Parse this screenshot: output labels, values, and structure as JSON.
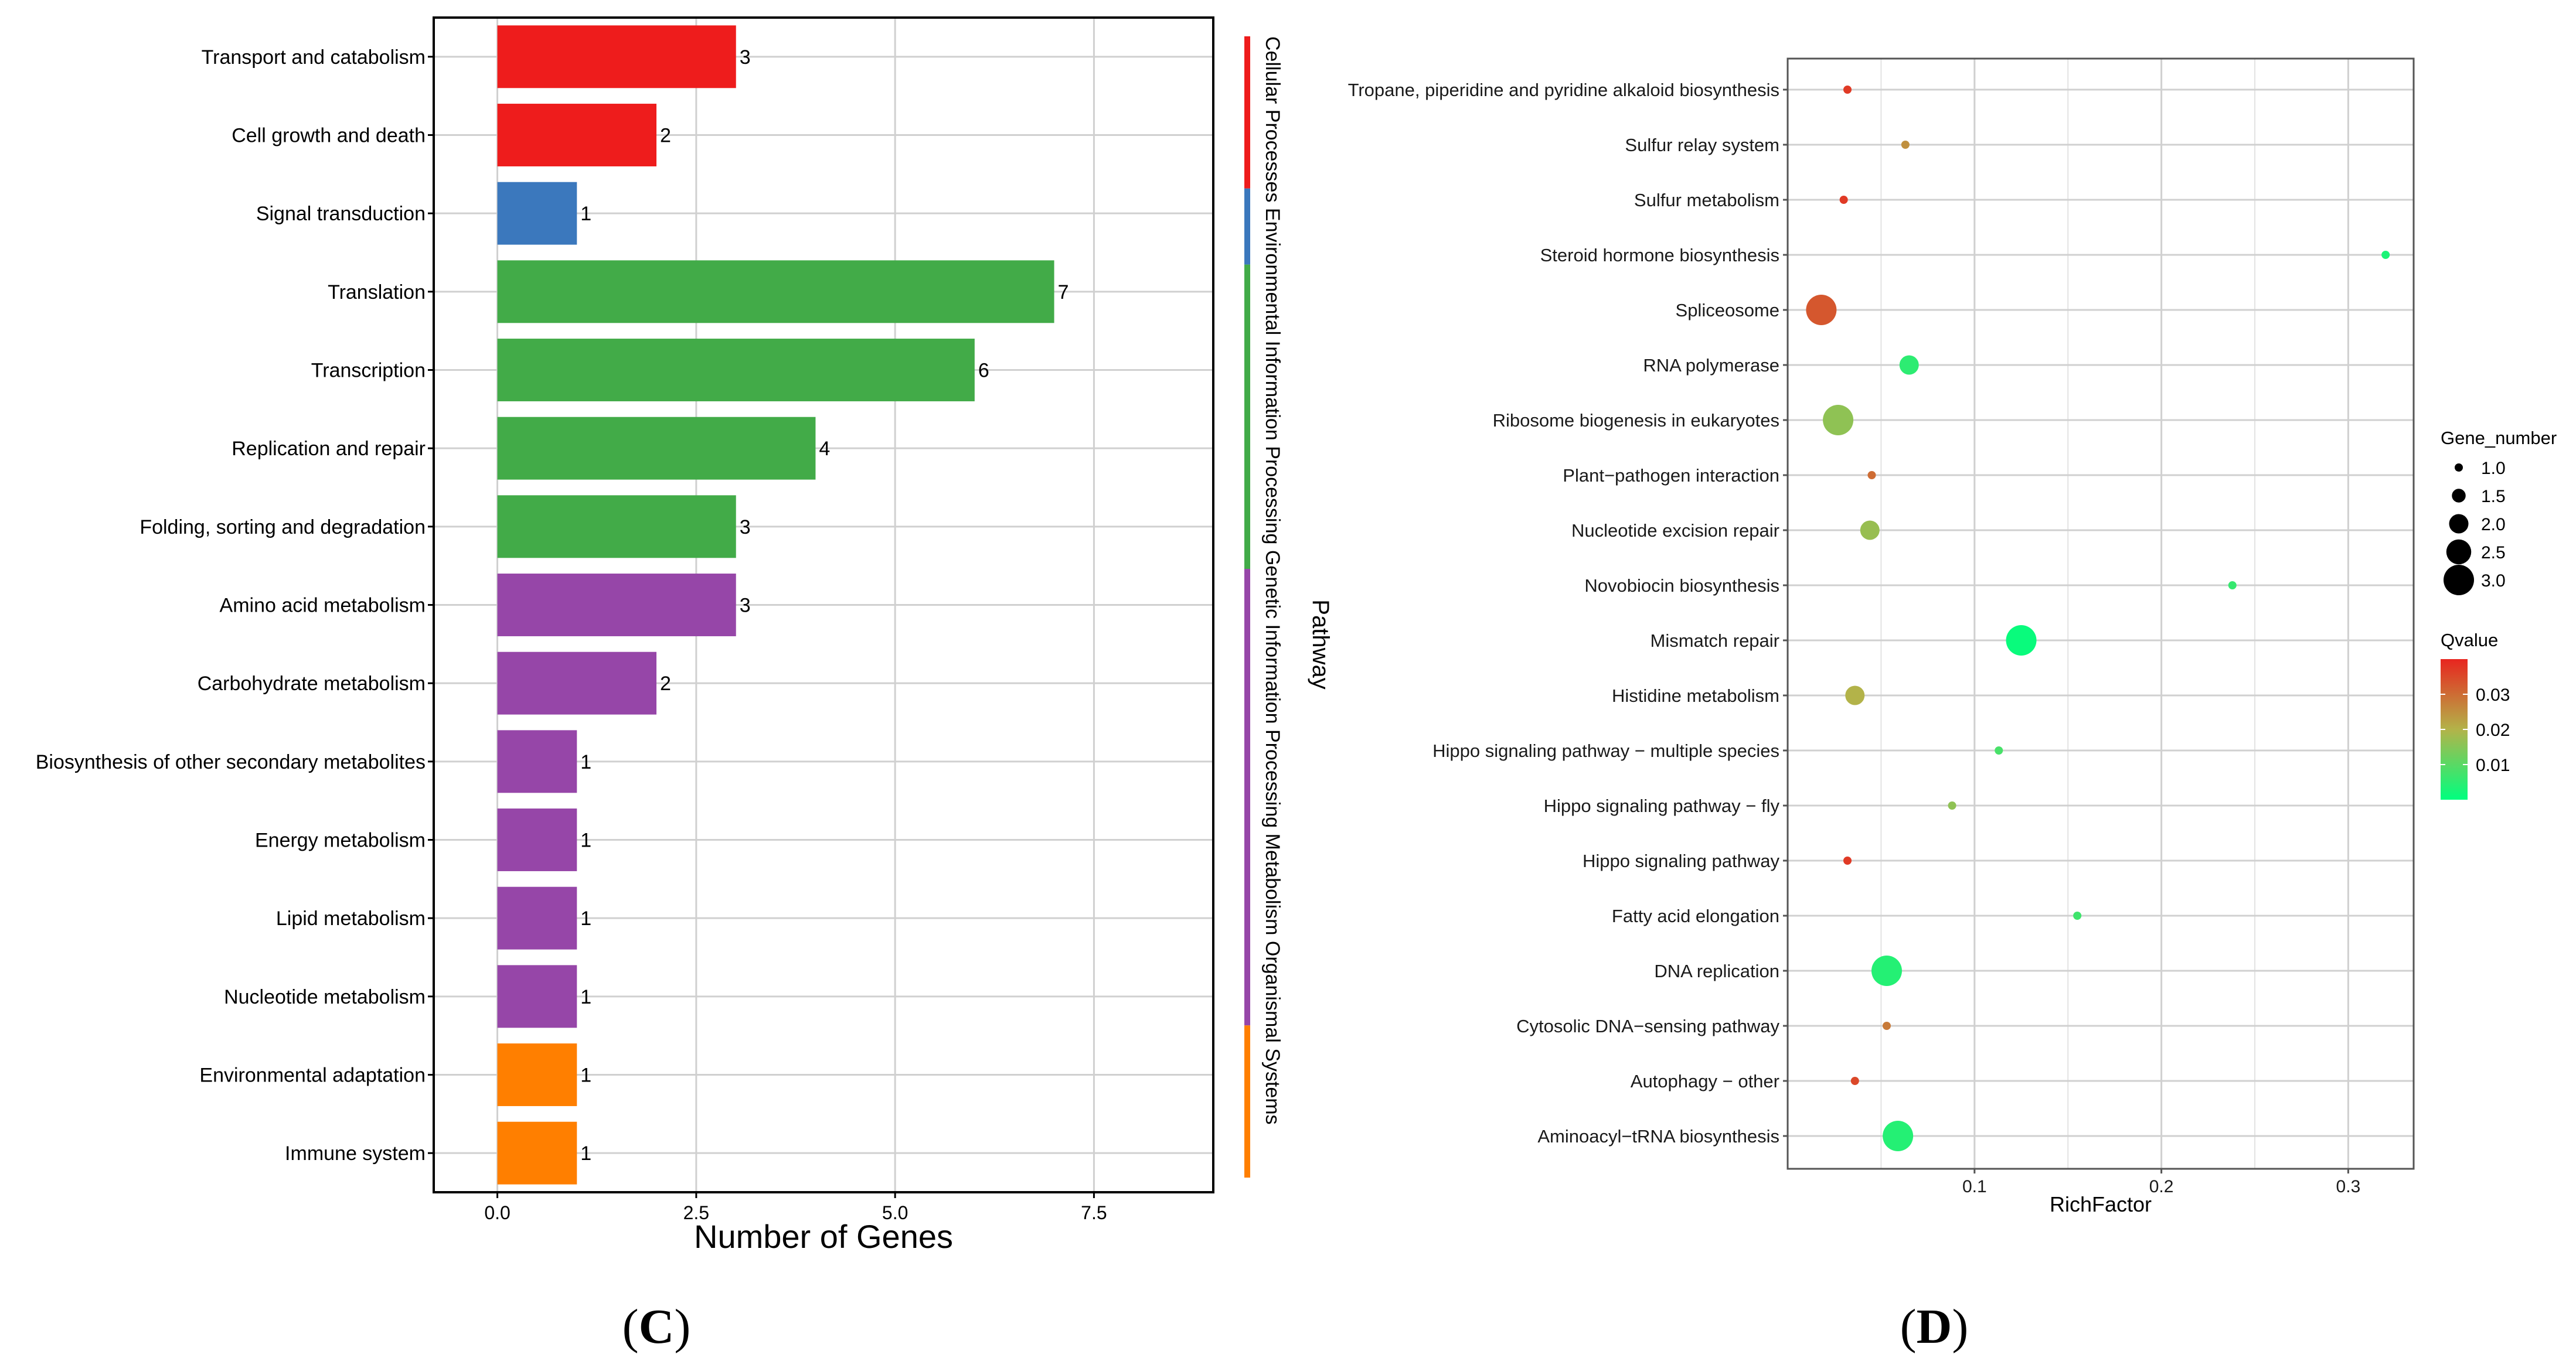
{
  "panels": {
    "C": {
      "caption_prefix": "(",
      "caption_letter": "C",
      "caption_suffix": ")"
    },
    "D": {
      "caption_prefix": "(",
      "caption_letter": "D",
      "caption_suffix": ")"
    }
  },
  "chart_data": [
    {
      "id": "C",
      "type": "bar",
      "orientation": "horizontal",
      "title": "",
      "xlabel": "Number of Genes",
      "ylabel": "",
      "xlim": [
        -0.8,
        9.0
      ],
      "xticks": [
        0.0,
        2.5,
        5.0,
        7.5
      ],
      "xtick_labels": [
        "0.0",
        "2.5",
        "5.0",
        "7.5"
      ],
      "grid": true,
      "categories": [
        "Transport and catabolism",
        "Cell growth and death",
        "Signal transduction",
        "Translation",
        "Transcription",
        "Replication and repair",
        "Folding, sorting and degradation",
        "Amino acid metabolism",
        "Carbohydrate metabolism",
        "Biosynthesis of other secondary metabolites",
        "Energy metabolism",
        "Lipid metabolism",
        "Nucleotide metabolism",
        "Environmental adaptation",
        "Immune system"
      ],
      "values": [
        3,
        2,
        1,
        7,
        6,
        4,
        3,
        3,
        2,
        1,
        1,
        1,
        1,
        1,
        1
      ],
      "groups": [
        "Cellular Processes",
        "Cellular Processes",
        "Environmental Information Processing",
        "Genetic Information Processing",
        "Genetic Information Processing",
        "Genetic Information Processing",
        "Genetic Information Processing",
        "Metabolism",
        "Metabolism",
        "Metabolism",
        "Metabolism",
        "Metabolism",
        "Metabolism",
        "Organismal Systems",
        "Organismal Systems"
      ],
      "group_colors": {
        "Cellular Processes": "#ee1c1c",
        "Environmental Information Processing": "#3b78bd",
        "Genetic Information Processing": "#42ab48",
        "Metabolism": "#9646a8",
        "Organismal Systems": "#ff7f00"
      },
      "pathway_strip_label": "Pathway"
    },
    {
      "id": "D",
      "type": "scatter",
      "title": "",
      "xlabel": "RichFactor",
      "ylabel": "",
      "xlim": [
        0.0,
        0.335
      ],
      "xticks": [
        0.1,
        0.2,
        0.3
      ],
      "xtick_labels": [
        "0.1",
        "0.2",
        "0.3"
      ],
      "grid": true,
      "categories": [
        "Tropane, piperidine and pyridine alkaloid biosynthesis",
        "Sulfur relay system",
        "Sulfur metabolism",
        "Steroid hormone biosynthesis",
        "Spliceosome",
        "RNA polymerase",
        "Ribosome biogenesis in eukaryotes",
        "Plant−pathogen interaction",
        "Nucleotide excision repair",
        "Novobiocin biosynthesis",
        "Mismatch repair",
        "Histidine metabolism",
        "Hippo signaling pathway − multiple species",
        "Hippo signaling pathway − fly",
        "Hippo signaling pathway",
        "Fatty acid elongation",
        "DNA replication",
        "Cytosolic DNA−sensing pathway",
        "Autophagy − other",
        "Aminoacyl−tRNA biosynthesis"
      ],
      "rich_factor": [
        0.032,
        0.063,
        0.03,
        0.32,
        0.018,
        0.065,
        0.027,
        0.045,
        0.044,
        0.238,
        0.125,
        0.036,
        0.113,
        0.088,
        0.032,
        0.155,
        0.053,
        0.053,
        0.036,
        0.059
      ],
      "gene_number": [
        1,
        1,
        1,
        1,
        3,
        2,
        3,
        1,
        2,
        1,
        3,
        2,
        1,
        1,
        1,
        1,
        3,
        1,
        1,
        3
      ],
      "qvalue": [
        0.037,
        0.025,
        0.037,
        0.003,
        0.033,
        0.005,
        0.016,
        0.03,
        0.017,
        0.006,
        0.001,
        0.02,
        0.008,
        0.016,
        0.037,
        0.007,
        0.004,
        0.028,
        0.035,
        0.004
      ],
      "size_legend": {
        "title": "Gene_number",
        "values": [
          1.0,
          1.5,
          2.0,
          2.5,
          3.0
        ],
        "labels": [
          "1.0",
          "1.5",
          "2.0",
          "2.5",
          "3.0"
        ]
      },
      "color_legend": {
        "title": "Qvalue",
        "range": [
          0.0,
          0.04
        ],
        "ticks": [
          0.01,
          0.02,
          0.03
        ],
        "tick_labels": [
          "0.01",
          "0.02",
          "0.03"
        ],
        "low_color": "#00ff7f",
        "high_color": "#e8251f"
      }
    }
  ]
}
